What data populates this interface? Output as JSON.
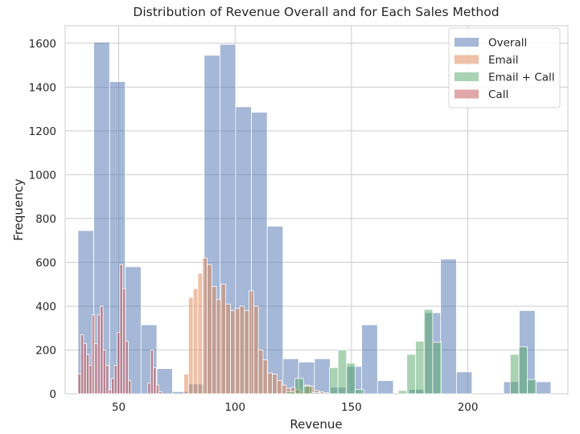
{
  "chart_data": {
    "type": "histogram",
    "title": "Distribution of Revenue Overall and for Each Sales Method",
    "xlabel": "Revenue",
    "ylabel": "Frequency",
    "xlim": [
      27,
      243
    ],
    "ylim": [
      0,
      1680
    ],
    "xticks": [
      50,
      100,
      150,
      200
    ],
    "yticks": [
      0,
      200,
      400,
      600,
      800,
      1000,
      1200,
      1400,
      1600
    ],
    "grid": true,
    "legend_position": "top-right",
    "series": [
      {
        "name": "Overall",
        "color": "#4c72b0",
        "alpha": 0.5,
        "bin_edges": [
          32.5,
          39.3,
          46.1,
          52.8,
          59.6,
          66.4,
          73.1,
          79.9,
          86.7,
          93.5,
          100.2,
          107.0,
          113.8,
          120.6,
          127.3,
          134.1,
          140.9,
          147.6,
          154.4,
          161.2,
          168.0,
          174.7,
          181.5,
          188.3,
          195.1,
          201.8,
          208.6,
          215.4,
          222.1,
          228.9,
          235.7
        ],
        "values": [
          745,
          1605,
          1425,
          580,
          315,
          115,
          10,
          45,
          1545,
          1595,
          1310,
          1285,
          765,
          160,
          145,
          160,
          30,
          125,
          315,
          60,
          0,
          20,
          370,
          615,
          100,
          0,
          0,
          55,
          380,
          55
        ]
      },
      {
        "name": "Email",
        "color": "#dd8452",
        "alpha": 0.5,
        "bin_edges": [
          78.0,
          80.0,
          82.0,
          84.0,
          86.0,
          88.0,
          90.0,
          92.0,
          94.0,
          96.0,
          98.0,
          100.0,
          102.0,
          104.0,
          106.0,
          108.0,
          110.0,
          112.0,
          114.0,
          116.0,
          118.0,
          120.0,
          122.0,
          124.0,
          126.0,
          128.0,
          130.0,
          132.0,
          134.0,
          136.0,
          138.0,
          140.0
        ],
        "values": [
          90,
          440,
          480,
          550,
          620,
          590,
          490,
          430,
          500,
          410,
          380,
          390,
          400,
          380,
          470,
          400,
          200,
          155,
          95,
          90,
          60,
          40,
          25,
          30,
          20,
          10,
          40,
          35,
          15,
          10,
          5
        ]
      },
      {
        "name": "Email + Call",
        "color": "#55a868",
        "alpha": 0.5,
        "bin_edges": [
          122.0,
          125.7,
          129.4,
          133.1,
          136.8,
          140.5,
          144.2,
          147.9,
          151.6,
          155.3,
          159.0,
          162.7,
          166.4,
          170.1,
          173.8,
          177.5,
          181.2,
          184.9,
          188.6,
          192.3,
          196.0,
          199.7,
          203.4,
          207.1,
          210.8,
          214.5,
          218.2,
          221.9,
          225.6,
          229.3,
          233.0
        ],
        "values": [
          10,
          70,
          35,
          5,
          0,
          120,
          200,
          140,
          20,
          0,
          0,
          0,
          0,
          15,
          180,
          240,
          385,
          235,
          0,
          0,
          0,
          0,
          0,
          0,
          0,
          0,
          180,
          215,
          65,
          0
        ]
      },
      {
        "name": "Call",
        "color": "#c44e52",
        "alpha": 0.5,
        "bin_edges": [
          32.5,
          33.7,
          34.9,
          36.1,
          37.3,
          38.5,
          39.7,
          40.9,
          42.1,
          43.3,
          44.5,
          45.7,
          46.9,
          48.1,
          49.3,
          50.5,
          51.7,
          52.9,
          54.1,
          55.3,
          56.5,
          57.7,
          58.9,
          60.1,
          61.3,
          62.5,
          63.7,
          64.9,
          66.1,
          67.3,
          68.5
        ],
        "values": [
          90,
          270,
          230,
          180,
          130,
          360,
          230,
          360,
          400,
          200,
          130,
          20,
          70,
          130,
          280,
          590,
          480,
          240,
          60,
          0,
          0,
          0,
          0,
          0,
          0,
          50,
          200,
          120,
          40,
          10
        ]
      }
    ]
  }
}
